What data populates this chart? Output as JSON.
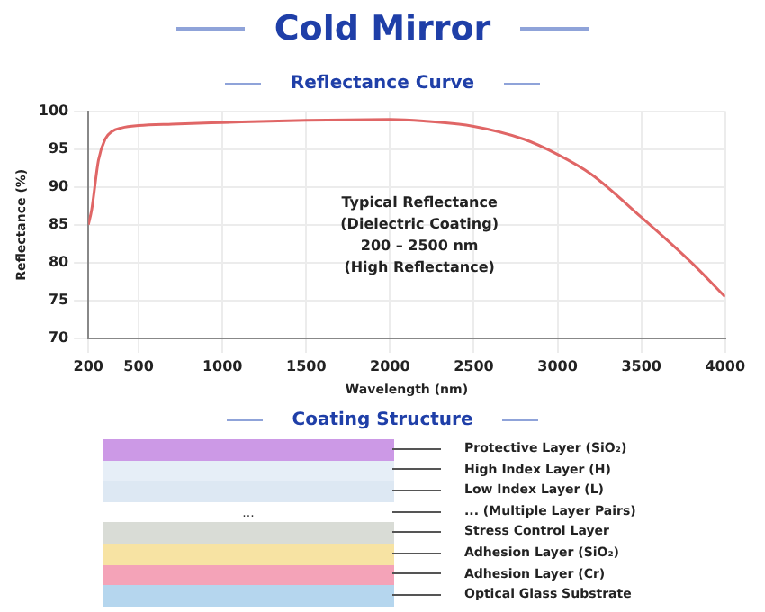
{
  "chart_data": {
    "type": "line",
    "title": "Cold Mirror",
    "subtitle": "Reflectance Curve",
    "xlabel": "Wavelength (nm)",
    "ylabel": "Reflectance (%)",
    "x": [
      200,
      220,
      260,
      300,
      340,
      400,
      500,
      700,
      1000,
      1500,
      2000,
      2200,
      2500,
      2800,
      3000,
      3200,
      3500,
      3800,
      4000
    ],
    "series": [
      {
        "color": "#e06666",
        "values": [
          85,
          87,
          93.5,
          96.3,
          97.3,
          97.8,
          98.1,
          98.3,
          98.5,
          98.8,
          98.9,
          98.7,
          98,
          96.3,
          94.3,
          91.7,
          86,
          80,
          75.5
        ]
      }
    ],
    "xlim": [
      200,
      4000
    ],
    "xticks": [
      200,
      500,
      1000,
      1500,
      2000,
      2500,
      3000,
      3500,
      4000
    ],
    "ylim": [
      70,
      100
    ],
    "yticks": [
      70,
      75,
      80,
      85,
      90,
      95,
      100
    ],
    "grid": true,
    "marker": "none",
    "line_style": "solid",
    "annotations": [
      "Typical Reflectance\n(Dielectric Coating)\n200 – 2500 nm\n(High Reflectance)",
      "Coating Structure",
      "Protective Layer (SiO₂)",
      "High Index Layer (H)",
      "Low Index Layer (L)",
      "... (Multiple Layer Pairs)",
      "Stress Control Layer",
      "Adhesion Layer (SiO₂)",
      "Adhesion Layer (Cr)",
      "Optical Glass Substrate",
      "..."
    ]
  }
}
